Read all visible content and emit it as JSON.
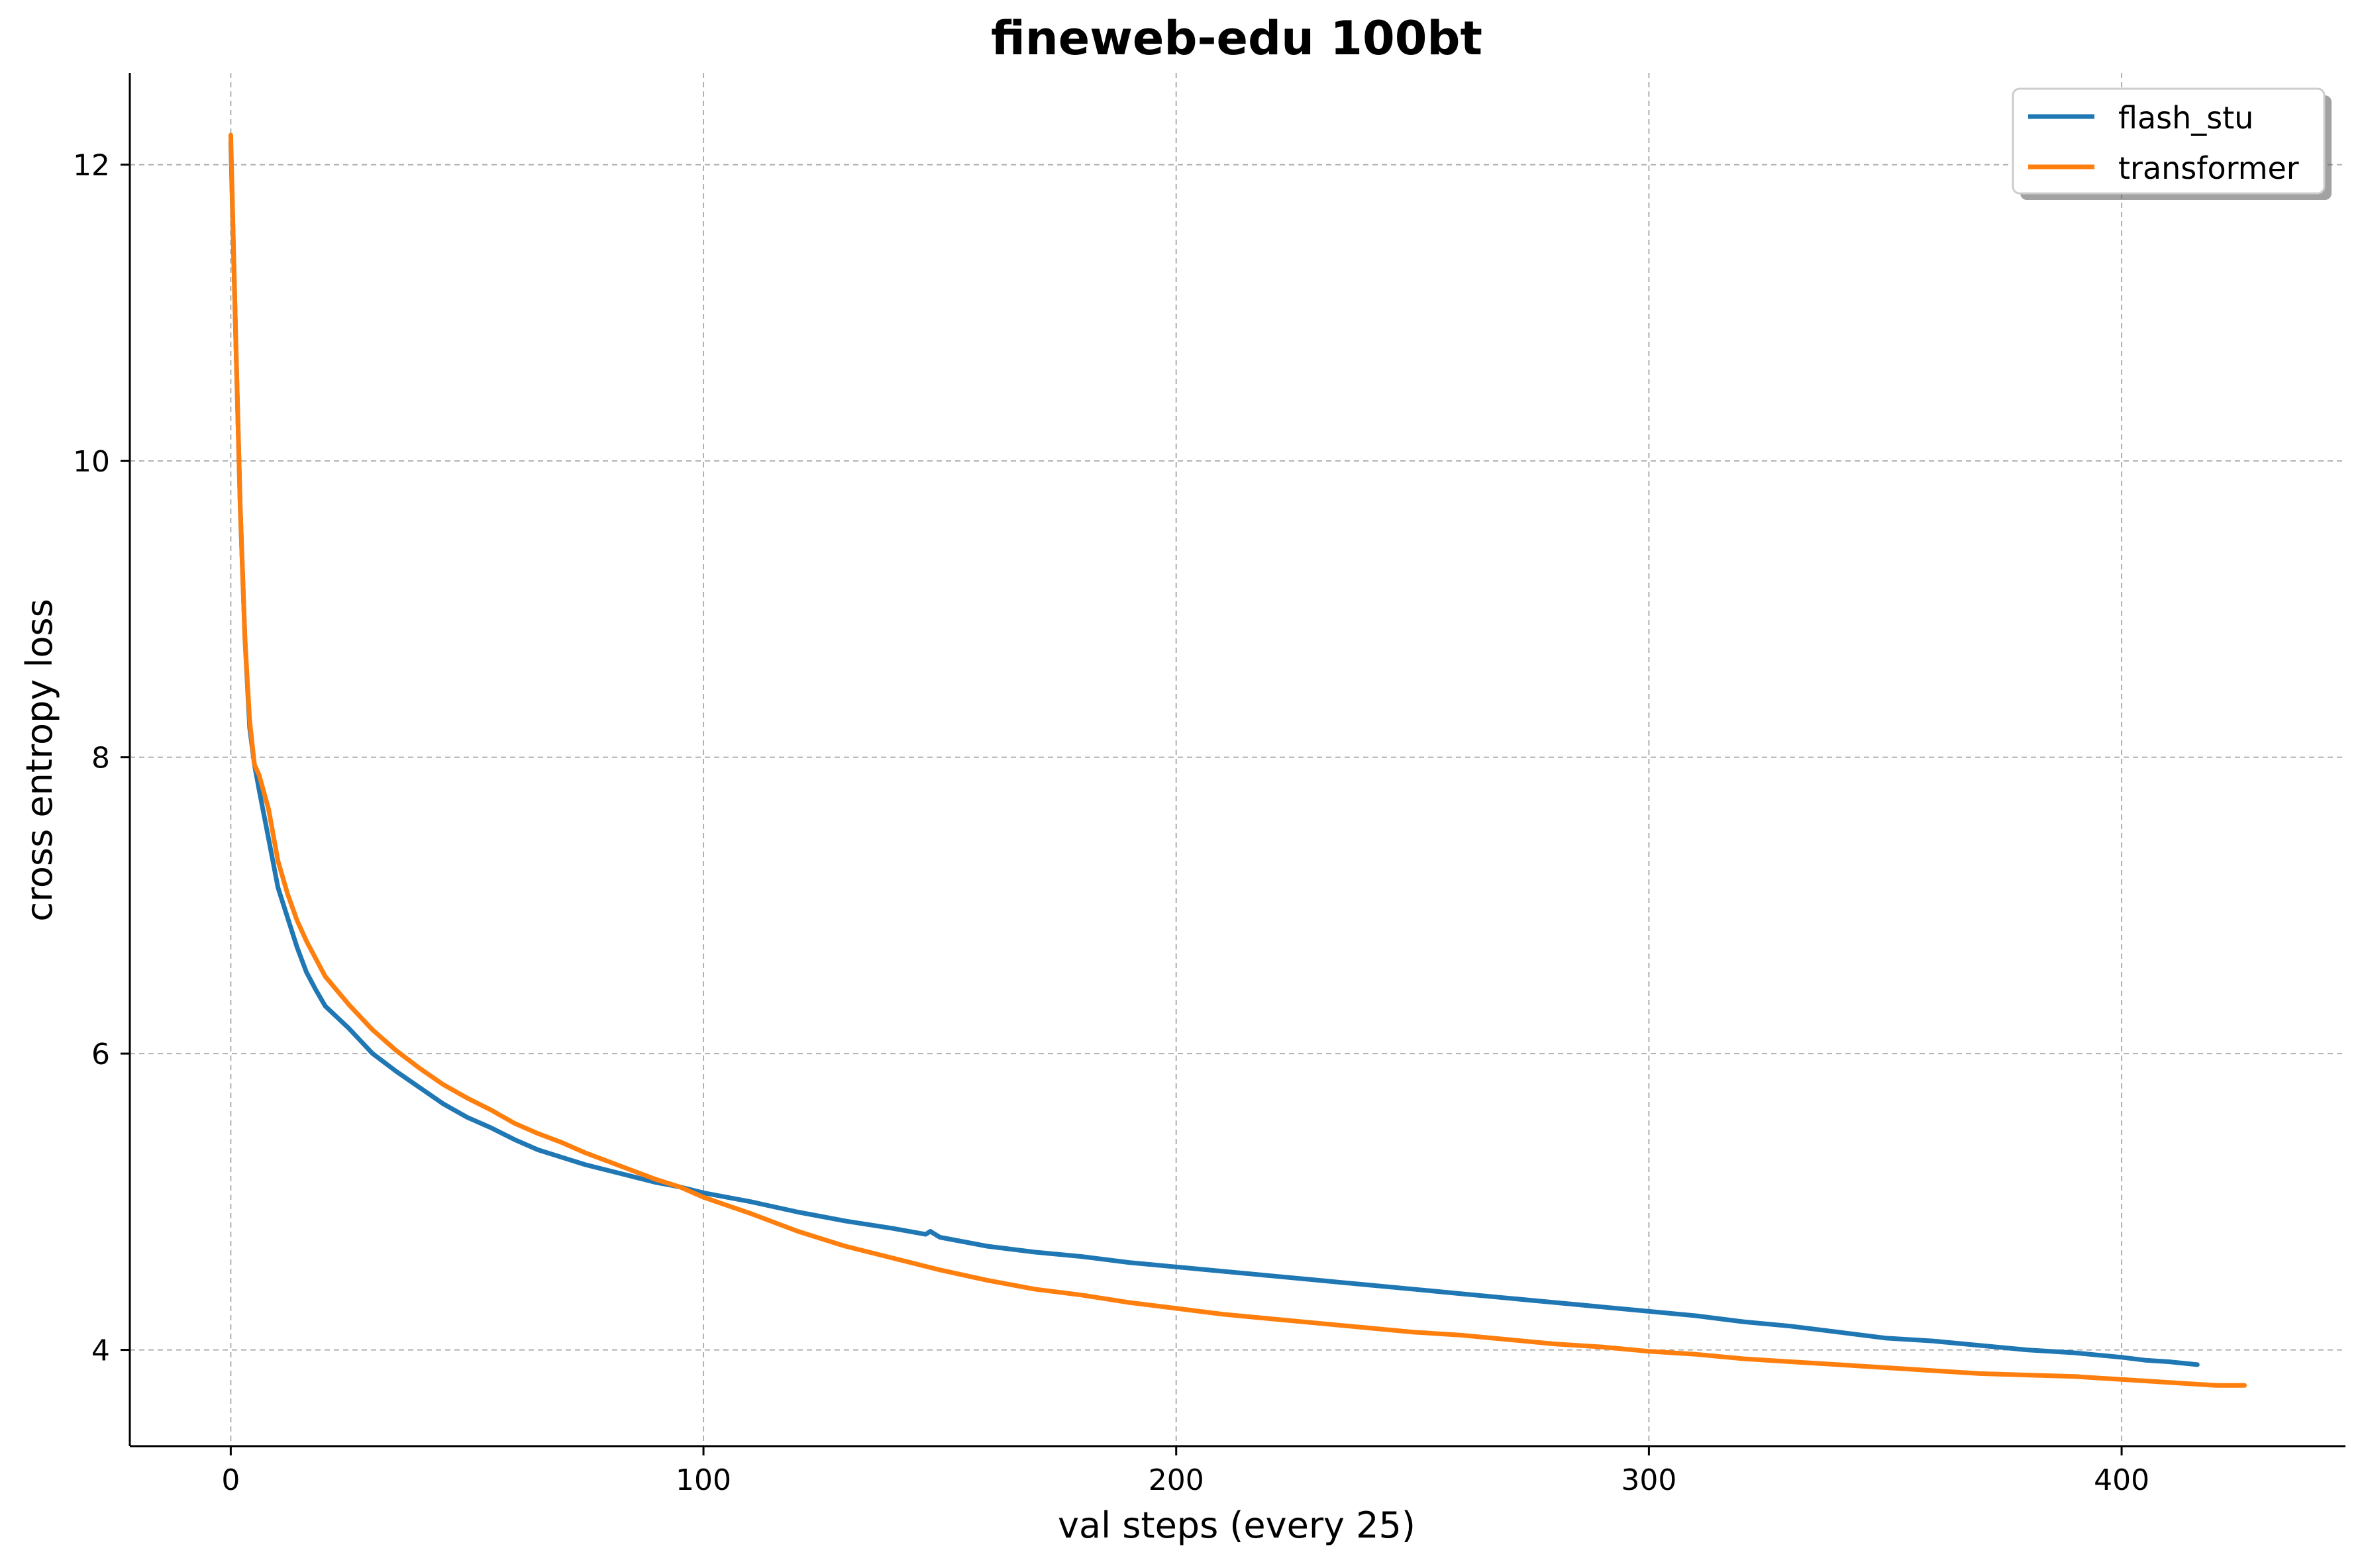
{
  "chart_data": {
    "type": "line",
    "title": "fineweb-edu 100bt",
    "xlabel": "val steps (every 25)",
    "ylabel": "cross entropy loss",
    "xlim": [
      -21.35,
      447.35
    ],
    "ylim": [
      3.35,
      12.62
    ],
    "xticks": [
      0,
      100,
      200,
      300,
      400
    ],
    "yticks": [
      4,
      6,
      8,
      10,
      12
    ],
    "grid": true,
    "legend_position": "top-right",
    "series": [
      {
        "name": "flash_stu",
        "color": "#1f77b4",
        "x": [
          0,
          1,
          2,
          3,
          4,
          5,
          6,
          8,
          10,
          12,
          14,
          16,
          18,
          20,
          25,
          30,
          35,
          40,
          45,
          50,
          55,
          60,
          65,
          70,
          75,
          80,
          85,
          90,
          95,
          100,
          110,
          120,
          130,
          140,
          147,
          148,
          150,
          160,
          170,
          180,
          190,
          200,
          210,
          220,
          230,
          240,
          250,
          260,
          270,
          280,
          290,
          300,
          310,
          320,
          330,
          340,
          350,
          360,
          370,
          380,
          390,
          400,
          405,
          410,
          416
        ],
        "y": [
          12.15,
          10.9,
          9.7,
          8.8,
          8.2,
          7.95,
          7.78,
          7.45,
          7.12,
          6.92,
          6.72,
          6.55,
          6.43,
          6.32,
          6.17,
          6.0,
          5.88,
          5.77,
          5.66,
          5.57,
          5.5,
          5.42,
          5.35,
          5.3,
          5.25,
          5.21,
          5.17,
          5.13,
          5.1,
          5.06,
          5.0,
          4.93,
          4.87,
          4.82,
          4.78,
          4.8,
          4.76,
          4.7,
          4.66,
          4.63,
          4.59,
          4.56,
          4.53,
          4.5,
          4.47,
          4.44,
          4.41,
          4.38,
          4.35,
          4.32,
          4.29,
          4.26,
          4.23,
          4.19,
          4.16,
          4.12,
          4.08,
          4.06,
          4.03,
          4.0,
          3.98,
          3.95,
          3.93,
          3.92,
          3.9
        ]
      },
      {
        "name": "transformer",
        "color": "#ff7f0e",
        "x": [
          0,
          1,
          2,
          3,
          4,
          5,
          6,
          8,
          10,
          12,
          14,
          16,
          18,
          20,
          25,
          30,
          35,
          40,
          45,
          50,
          55,
          60,
          65,
          70,
          75,
          80,
          85,
          90,
          95,
          100,
          110,
          120,
          130,
          140,
          150,
          160,
          170,
          180,
          190,
          200,
          210,
          220,
          230,
          240,
          250,
          260,
          270,
          280,
          290,
          300,
          310,
          320,
          330,
          340,
          350,
          360,
          370,
          380,
          390,
          400,
          410,
          420,
          426
        ],
        "y": [
          12.2,
          10.9,
          9.7,
          8.8,
          8.25,
          7.95,
          7.88,
          7.65,
          7.3,
          7.08,
          6.9,
          6.76,
          6.64,
          6.52,
          6.33,
          6.16,
          6.02,
          5.9,
          5.79,
          5.7,
          5.62,
          5.53,
          5.46,
          5.4,
          5.33,
          5.27,
          5.21,
          5.15,
          5.1,
          5.03,
          4.92,
          4.8,
          4.7,
          4.62,
          4.54,
          4.47,
          4.41,
          4.37,
          4.32,
          4.28,
          4.24,
          4.21,
          4.18,
          4.15,
          4.12,
          4.1,
          4.07,
          4.04,
          4.02,
          3.99,
          3.97,
          3.94,
          3.92,
          3.9,
          3.88,
          3.86,
          3.84,
          3.83,
          3.82,
          3.8,
          3.78,
          3.76,
          3.76
        ]
      }
    ]
  }
}
